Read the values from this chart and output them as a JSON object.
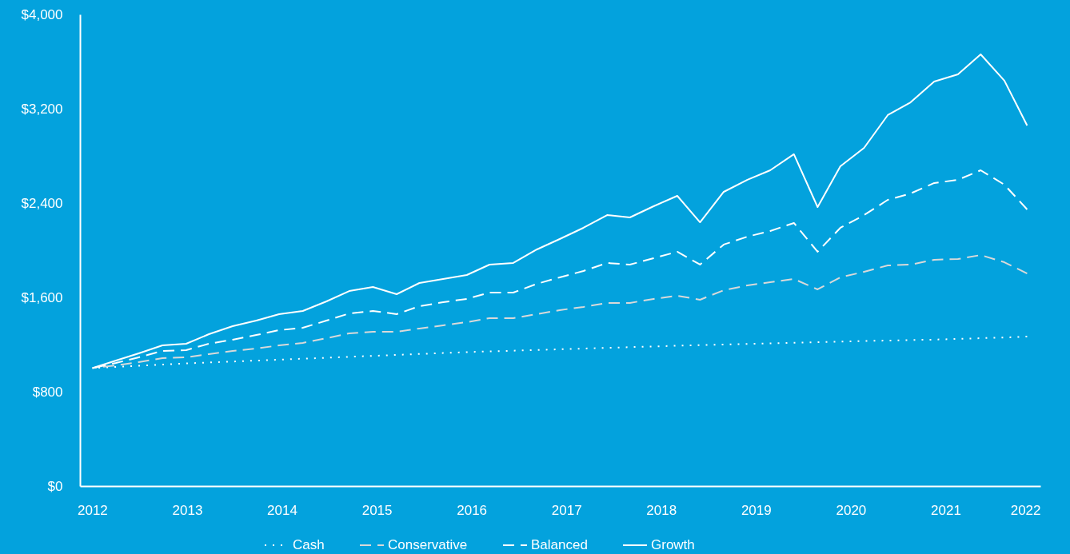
{
  "chart_data": {
    "type": "line",
    "x": [
      2012.0,
      2012.25,
      2012.49,
      2012.74,
      2012.99,
      2013.23,
      2013.48,
      2013.73,
      2013.97,
      2014.22,
      2014.47,
      2014.71,
      2014.96,
      2015.21,
      2015.45,
      2015.7,
      2015.95,
      2016.19,
      2016.44,
      2016.69,
      2016.93,
      2017.18,
      2017.43,
      2017.67,
      2017.92,
      2018.17,
      2018.41,
      2018.66,
      2018.91,
      2019.15,
      2019.4,
      2019.65,
      2019.89,
      2020.14,
      2020.39,
      2020.63,
      2020.88,
      2021.13,
      2021.37,
      2021.62,
      2021.86
    ],
    "series": [
      {
        "name": "Cash",
        "color": "#ffffff",
        "line_style": "dotted",
        "values": [
          1000,
          1010,
          1020,
          1030,
          1040,
          1048,
          1056,
          1064,
          1072,
          1080,
          1088,
          1096,
          1104,
          1112,
          1120,
          1128,
          1136,
          1142,
          1148,
          1154,
          1160,
          1166,
          1172,
          1178,
          1184,
          1190,
          1195,
          1200,
          1205,
          1210,
          1215,
          1220,
          1225,
          1230,
          1234,
          1238,
          1242,
          1248,
          1254,
          1260,
          1268
        ]
      },
      {
        "name": "Conservative",
        "color": "#d9d9d9",
        "line_style": "dashed",
        "values": [
          1000,
          1024,
          1051,
          1085,
          1092,
          1119,
          1146,
          1166,
          1193,
          1214,
          1254,
          1295,
          1309,
          1309,
          1336,
          1363,
          1390,
          1424,
          1424,
          1458,
          1492,
          1519,
          1553,
          1553,
          1587,
          1614,
          1580,
          1661,
          1702,
          1729,
          1756,
          1668,
          1770,
          1817,
          1871,
          1878,
          1919,
          1925,
          1959,
          1898,
          1803
        ]
      },
      {
        "name": "Balanced",
        "color": "#ffffff",
        "line_style": "dashed",
        "values": [
          1000,
          1044,
          1092,
          1146,
          1153,
          1207,
          1241,
          1281,
          1322,
          1342,
          1403,
          1464,
          1485,
          1458,
          1525,
          1559,
          1587,
          1641,
          1641,
          1715,
          1770,
          1824,
          1892,
          1878,
          1932,
          1987,
          1878,
          2048,
          2115,
          2163,
          2231,
          1987,
          2190,
          2298,
          2427,
          2481,
          2570,
          2597,
          2678,
          2556,
          2346
        ]
      },
      {
        "name": "Growth",
        "color": "#ffffff",
        "line_style": "solid",
        "values": [
          1000,
          1064,
          1125,
          1193,
          1207,
          1288,
          1356,
          1403,
          1458,
          1485,
          1566,
          1654,
          1688,
          1627,
          1722,
          1756,
          1790,
          1878,
          1892,
          2007,
          2095,
          2190,
          2298,
          2278,
          2373,
          2461,
          2237,
          2495,
          2597,
          2678,
          2814,
          2366,
          2712,
          2868,
          3146,
          3254,
          3431,
          3492,
          3661,
          3438,
          3058
        ]
      }
    ],
    "xlim": [
      2011.87,
      2022
    ],
    "xticks": [
      2012,
      2013,
      2014,
      2015,
      2016,
      2017,
      2018,
      2019,
      2020,
      2021,
      2022
    ],
    "ylim": [
      0,
      4000
    ],
    "yticks": [
      {
        "value": 0,
        "label": "$0"
      },
      {
        "value": 800,
        "label": "$800"
      },
      {
        "value": 1600,
        "label": "$1,600"
      },
      {
        "value": 2400,
        "label": "$2,400"
      },
      {
        "value": 3200,
        "label": "$3,200"
      },
      {
        "value": 4000,
        "label": "$4,000"
      }
    ],
    "grid": false,
    "legend": "bottom"
  }
}
